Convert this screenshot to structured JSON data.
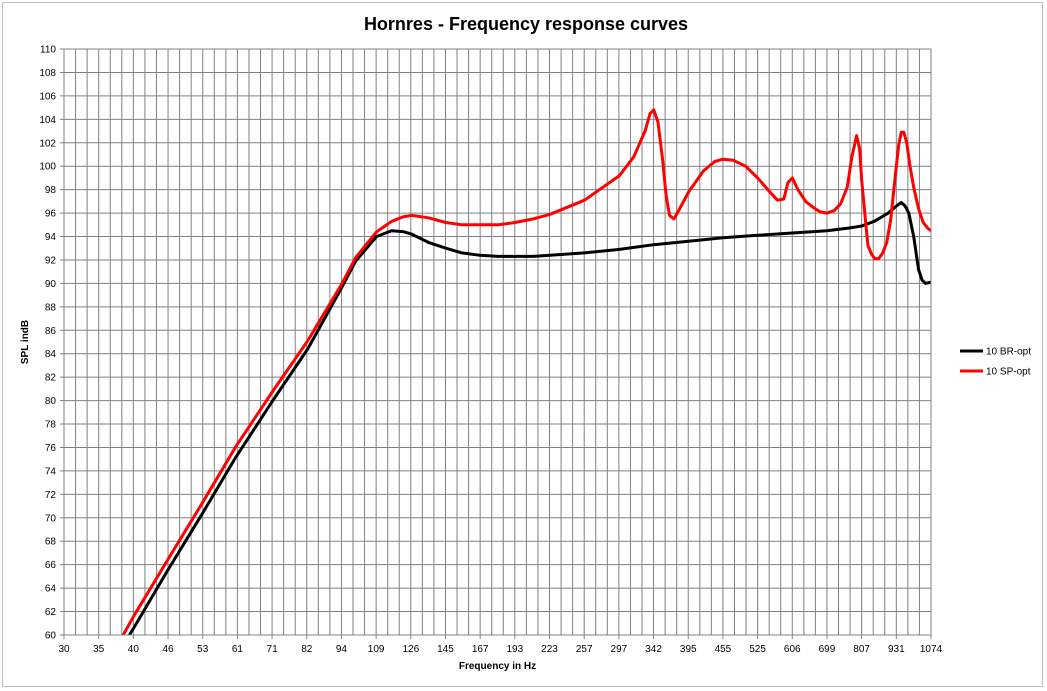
{
  "chart_data": {
    "type": "line",
    "title": "Hornres - Frequency response curves",
    "xlabel": "Frequency in Hz",
    "ylabel": "SPL indB",
    "x_scale": "log",
    "xlim": [
      30,
      1074
    ],
    "ylim": [
      60,
      110
    ],
    "x_tick_labels": [
      "30",
      "35",
      "40",
      "46",
      "53",
      "61",
      "71",
      "82",
      "94",
      "109",
      "126",
      "145",
      "167",
      "193",
      "223",
      "257",
      "297",
      "342",
      "395",
      "455",
      "525",
      "606",
      "699",
      "807",
      "931",
      "1074"
    ],
    "y_ticks": [
      60,
      62,
      64,
      66,
      68,
      70,
      72,
      74,
      76,
      78,
      80,
      82,
      84,
      86,
      88,
      90,
      92,
      94,
      96,
      98,
      100,
      102,
      104,
      106,
      108,
      110
    ],
    "grid": true,
    "legend_position": "right",
    "series": [
      {
        "name": "10 BR-opt",
        "color": "#000000",
        "points": [
          [
            39.3,
            60
          ],
          [
            40,
            60.6
          ],
          [
            46,
            65.5
          ],
          [
            53,
            70.3
          ],
          [
            61,
            75.2
          ],
          [
            71,
            80.0
          ],
          [
            82,
            84.4
          ],
          [
            94,
            89.5
          ],
          [
            100,
            91.9
          ],
          [
            109,
            94.0
          ],
          [
            116,
            94.5
          ],
          [
            122,
            94.4
          ],
          [
            126,
            94.2
          ],
          [
            135,
            93.5
          ],
          [
            145,
            93.0
          ],
          [
            155,
            92.6
          ],
          [
            167,
            92.4
          ],
          [
            180,
            92.3
          ],
          [
            193,
            92.3
          ],
          [
            208,
            92.3
          ],
          [
            223,
            92.4
          ],
          [
            257,
            92.6
          ],
          [
            297,
            92.9
          ],
          [
            342,
            93.3
          ],
          [
            395,
            93.6
          ],
          [
            455,
            93.9
          ],
          [
            525,
            94.1
          ],
          [
            606,
            94.3
          ],
          [
            699,
            94.5
          ],
          [
            760,
            94.7
          ],
          [
            807,
            94.9
          ],
          [
            850,
            95.3
          ],
          [
            900,
            96.0
          ],
          [
            931,
            96.6
          ],
          [
            950,
            96.9
          ],
          [
            965,
            96.6
          ],
          [
            980,
            96.0
          ],
          [
            1000,
            94.0
          ],
          [
            1020,
            91.2
          ],
          [
            1035,
            90.3
          ],
          [
            1050,
            90.0
          ],
          [
            1074,
            90.1
          ]
        ]
      },
      {
        "name": "10 SP-opt",
        "color": "#ff0000",
        "points": [
          [
            38.3,
            60
          ],
          [
            40,
            61.6
          ],
          [
            46,
            66.4
          ],
          [
            53,
            71.2
          ],
          [
            61,
            76.1
          ],
          [
            71,
            80.8
          ],
          [
            82,
            85.1
          ],
          [
            94,
            89.8
          ],
          [
            100,
            92.2
          ],
          [
            109,
            94.4
          ],
          [
            116,
            95.3
          ],
          [
            122,
            95.7
          ],
          [
            126,
            95.8
          ],
          [
            135,
            95.6
          ],
          [
            145,
            95.2
          ],
          [
            155,
            95.0
          ],
          [
            167,
            95.0
          ],
          [
            180,
            95.0
          ],
          [
            193,
            95.2
          ],
          [
            208,
            95.5
          ],
          [
            223,
            95.9
          ],
          [
            257,
            97.1
          ],
          [
            297,
            99.2
          ],
          [
            315,
            100.8
          ],
          [
            330,
            103.0
          ],
          [
            337,
            104.5
          ],
          [
            342,
            104.8
          ],
          [
            348,
            103.8
          ],
          [
            355,
            100.5
          ],
          [
            360,
            97.5
          ],
          [
            365,
            95.8
          ],
          [
            372,
            95.5
          ],
          [
            380,
            96.3
          ],
          [
            395,
            97.8
          ],
          [
            420,
            99.6
          ],
          [
            440,
            100.4
          ],
          [
            455,
            100.6
          ],
          [
            475,
            100.5
          ],
          [
            500,
            100.0
          ],
          [
            525,
            99.0
          ],
          [
            550,
            97.9
          ],
          [
            570,
            97.1
          ],
          [
            585,
            97.2
          ],
          [
            595,
            98.6
          ],
          [
            606,
            99.0
          ],
          [
            620,
            98.0
          ],
          [
            640,
            97.0
          ],
          [
            660,
            96.5
          ],
          [
            680,
            96.1
          ],
          [
            699,
            96.0
          ],
          [
            720,
            96.2
          ],
          [
            740,
            96.8
          ],
          [
            760,
            98.2
          ],
          [
            775,
            100.8
          ],
          [
            790,
            102.6
          ],
          [
            800,
            101.5
          ],
          [
            807,
            98.8
          ],
          [
            818,
            95.8
          ],
          [
            828,
            93.2
          ],
          [
            840,
            92.5
          ],
          [
            852,
            92.1
          ],
          [
            865,
            92.1
          ],
          [
            880,
            92.6
          ],
          [
            895,
            93.5
          ],
          [
            910,
            95.5
          ],
          [
            925,
            98.8
          ],
          [
            940,
            101.8
          ],
          [
            950,
            102.9
          ],
          [
            960,
            102.9
          ],
          [
            972,
            102.0
          ],
          [
            985,
            100.0
          ],
          [
            1000,
            98.2
          ],
          [
            1020,
            96.4
          ],
          [
            1040,
            95.2
          ],
          [
            1060,
            94.7
          ],
          [
            1074,
            94.5
          ]
        ]
      }
    ]
  }
}
